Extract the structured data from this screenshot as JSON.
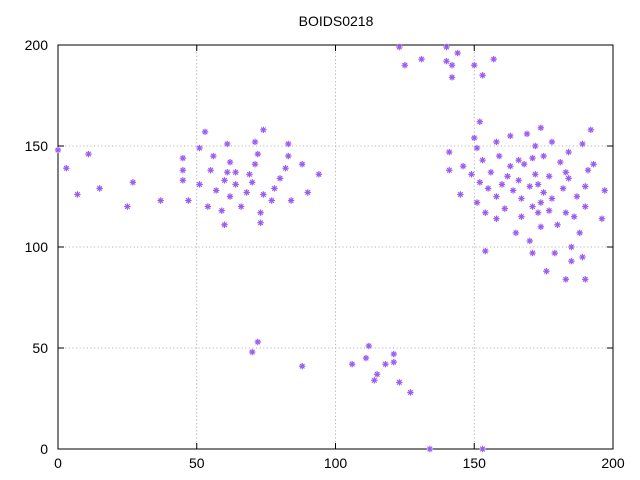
{
  "chart_data": {
    "type": "scatter",
    "title": "BOIDS0218",
    "xlabel": "",
    "ylabel": "",
    "xlim": [
      0,
      200
    ],
    "ylim": [
      0,
      200
    ],
    "xticks": [
      "0",
      "50",
      "100",
      "150",
      "200"
    ],
    "yticks": [
      "0",
      "50",
      "100",
      "150",
      "200"
    ],
    "grid": true,
    "marker": "asterisk",
    "color": "#9B5CF0",
    "series": [
      {
        "points": [
          [
            0,
            148
          ],
          [
            3,
            139
          ],
          [
            7,
            126
          ],
          [
            11,
            146
          ],
          [
            15,
            129
          ],
          [
            25,
            120
          ],
          [
            27,
            132
          ],
          [
            37,
            123
          ],
          [
            45,
            144
          ],
          [
            45,
            138
          ],
          [
            45,
            133
          ],
          [
            47,
            123
          ],
          [
            51,
            149
          ],
          [
            51,
            131
          ],
          [
            53,
            157
          ],
          [
            54,
            120
          ],
          [
            55,
            138
          ],
          [
            56,
            145
          ],
          [
            57,
            128
          ],
          [
            59,
            118
          ],
          [
            60,
            111
          ],
          [
            60,
            133
          ],
          [
            61,
            151
          ],
          [
            61,
            137
          ],
          [
            62,
            142
          ],
          [
            62,
            125
          ],
          [
            64,
            131
          ],
          [
            64,
            137
          ],
          [
            66,
            120
          ],
          [
            68,
            127
          ],
          [
            69,
            136
          ],
          [
            70,
            132
          ],
          [
            70,
            48
          ],
          [
            71,
            141
          ],
          [
            71,
            152
          ],
          [
            72,
            53
          ],
          [
            72,
            146
          ],
          [
            73,
            117
          ],
          [
            73,
            112
          ],
          [
            74,
            158
          ],
          [
            74,
            126
          ],
          [
            77,
            123
          ],
          [
            78,
            129
          ],
          [
            80,
            134
          ],
          [
            82,
            139
          ],
          [
            83,
            145
          ],
          [
            83,
            151
          ],
          [
            84,
            123
          ],
          [
            88,
            141
          ],
          [
            88,
            41
          ],
          [
            90,
            127
          ],
          [
            94,
            136
          ],
          [
            106,
            42
          ],
          [
            111,
            45
          ],
          [
            112,
            51
          ],
          [
            114,
            34
          ],
          [
            115,
            37
          ],
          [
            118,
            42
          ],
          [
            121,
            43
          ],
          [
            121,
            47
          ],
          [
            123,
            33
          ],
          [
            123,
            199
          ],
          [
            125,
            190
          ],
          [
            127,
            28
          ],
          [
            131,
            193
          ],
          [
            134,
            0
          ],
          [
            140,
            199
          ],
          [
            140,
            192
          ],
          [
            141,
            147
          ],
          [
            141,
            138
          ],
          [
            142,
            184
          ],
          [
            142,
            190
          ],
          [
            144,
            196
          ],
          [
            145,
            126
          ],
          [
            146,
            140
          ],
          [
            149,
            136
          ],
          [
            150,
            190
          ],
          [
            150,
            154
          ],
          [
            151,
            122
          ],
          [
            151,
            149
          ],
          [
            152,
            162
          ],
          [
            152,
            132
          ],
          [
            153,
            0
          ],
          [
            153,
            185
          ],
          [
            153,
            143
          ],
          [
            154,
            98
          ],
          [
            154,
            117
          ],
          [
            155,
            129
          ],
          [
            156,
            137
          ],
          [
            157,
            193
          ],
          [
            158,
            114
          ],
          [
            158,
            152
          ],
          [
            158,
            125
          ],
          [
            159,
            145
          ],
          [
            160,
            131
          ],
          [
            161,
            119
          ],
          [
            162,
            135
          ],
          [
            163,
            155
          ],
          [
            163,
            140
          ],
          [
            164,
            128
          ],
          [
            165,
            107
          ],
          [
            166,
            143
          ],
          [
            166,
            133
          ],
          [
            167,
            115
          ],
          [
            167,
            124
          ],
          [
            168,
            141
          ],
          [
            169,
            156
          ],
          [
            170,
            130
          ],
          [
            170,
            103
          ],
          [
            171,
            120
          ],
          [
            171,
            144
          ],
          [
            171,
            97
          ],
          [
            172,
            136
          ],
          [
            172,
            150
          ],
          [
            173,
            131
          ],
          [
            173,
            117
          ],
          [
            174,
            159
          ],
          [
            174,
            122
          ],
          [
            174,
            110
          ],
          [
            175,
            145
          ],
          [
            175,
            127
          ],
          [
            176,
            88
          ],
          [
            177,
            118
          ],
          [
            177,
            135
          ],
          [
            178,
            152
          ],
          [
            178,
            124
          ],
          [
            179,
            97
          ],
          [
            180,
            111
          ],
          [
            181,
            142
          ],
          [
            182,
            129
          ],
          [
            183,
            117
          ],
          [
            183,
            84
          ],
          [
            183,
            137
          ],
          [
            184,
            147
          ],
          [
            184,
            134
          ],
          [
            185,
            93
          ],
          [
            185,
            100
          ],
          [
            186,
            115
          ],
          [
            187,
            125
          ],
          [
            188,
            107
          ],
          [
            189,
            95
          ],
          [
            189,
            151
          ],
          [
            190,
            130
          ],
          [
            190,
            120
          ],
          [
            190,
            84
          ],
          [
            191,
            138
          ],
          [
            192,
            158
          ],
          [
            193,
            141
          ],
          [
            196,
            114
          ],
          [
            197,
            128
          ]
        ]
      }
    ]
  }
}
